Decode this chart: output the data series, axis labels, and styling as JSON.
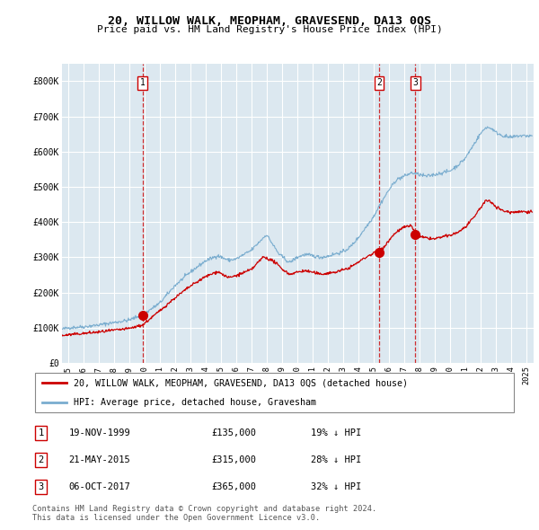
{
  "title": "20, WILLOW WALK, MEOPHAM, GRAVESEND, DA13 0QS",
  "subtitle": "Price paid vs. HM Land Registry's House Price Index (HPI)",
  "legend_line1": "20, WILLOW WALK, MEOPHAM, GRAVESEND, DA13 0QS (detached house)",
  "legend_line2": "HPI: Average price, detached house, Gravesham",
  "transactions": [
    {
      "num": 1,
      "date": "19-NOV-1999",
      "price": 135000,
      "pct": "19%",
      "dir": "↓",
      "year": 1999.88
    },
    {
      "num": 2,
      "date": "21-MAY-2015",
      "price": 315000,
      "pct": "28%",
      "dir": "↓",
      "year": 2015.38
    },
    {
      "num": 3,
      "date": "06-OCT-2017",
      "price": 365000,
      "pct": "32%",
      "dir": "↓",
      "year": 2017.76
    }
  ],
  "footnote1": "Contains HM Land Registry data © Crown copyright and database right 2024.",
  "footnote2": "This data is licensed under the Open Government Licence v3.0.",
  "ylim": [
    0,
    850000
  ],
  "xlim_start": 1994.6,
  "xlim_end": 2025.5,
  "red_line_color": "#cc0000",
  "blue_line_color": "#7aadcf",
  "bg_color": "#dce8f0",
  "grid_color": "#ffffff",
  "marker_color": "#cc0000",
  "transaction_prices": [
    135000,
    315000,
    365000
  ]
}
